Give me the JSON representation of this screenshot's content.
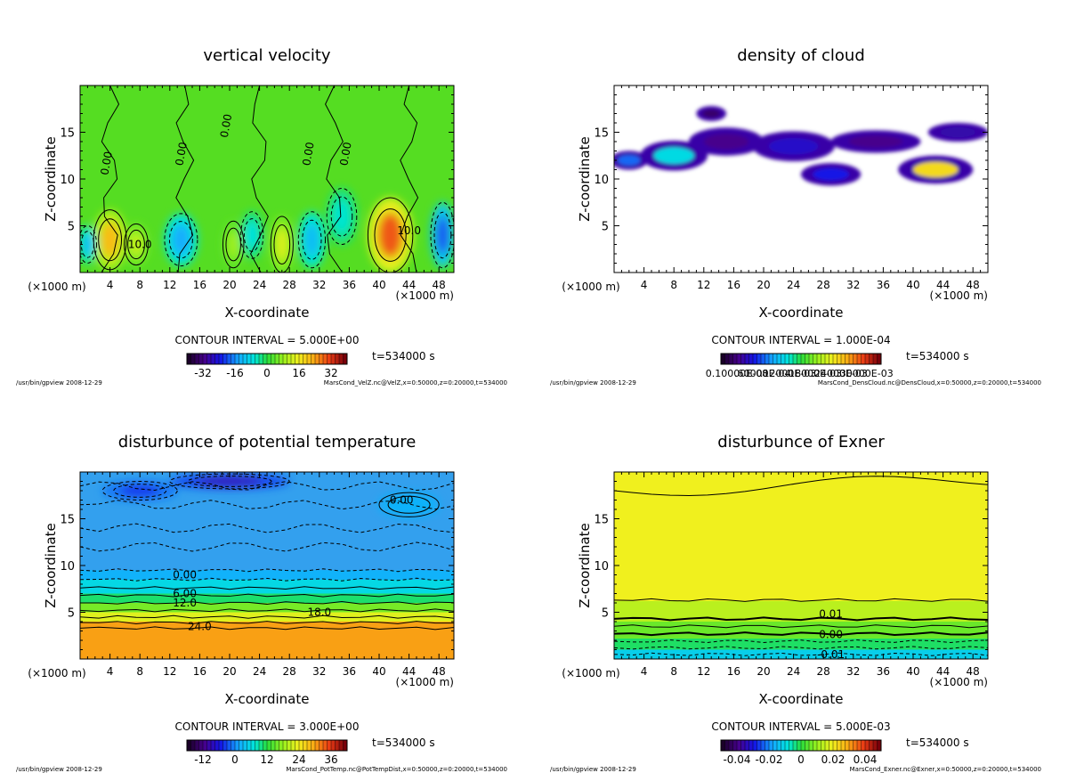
{
  "chart_data": [
    {
      "type": "heatmap",
      "title": "vertical velocity",
      "xlabel": "X-coordinate",
      "ylabel": "Z-coordinate",
      "x_unit_left": "(×1000 m)",
      "x_unit_right": "(×1000 m)",
      "xticks": [
        "4",
        "8",
        "12",
        "16",
        "20",
        "24",
        "28",
        "32",
        "36",
        "40",
        "44",
        "48"
      ],
      "yticks": [
        "5",
        "10",
        "15"
      ],
      "xlim": [
        0,
        50
      ],
      "ylim": [
        0,
        20
      ],
      "contour_interval": "CONTOUR INTERVAL = 5.000E+00",
      "colorbar_ticks": [
        "-32",
        "-16",
        "0",
        "16",
        "32"
      ],
      "colorbar_range": [
        -40,
        40
      ],
      "colormap": "rainbow",
      "time_label": "t=534000 s",
      "footer_left": "/usr/bin/gpview 2008-12-29",
      "footer_right": "MarsCond_VelZ.nc@VelZ,x=0:50000,z=0:20000,t=534000",
      "contour_labels": [
        "0.00",
        "0.00",
        "0.00",
        "0.00",
        "0.00",
        "10.0",
        "10.0"
      ],
      "background_color": "#55dd22",
      "features": [
        {
          "x": 4,
          "z": 3.5,
          "value": 22,
          "rx": 2.2,
          "rz": 3.2
        },
        {
          "x": 7.5,
          "z": 3,
          "value": 12,
          "rx": 1.6,
          "rz": 2.2
        },
        {
          "x": 13.5,
          "z": 3.5,
          "value": -14,
          "rx": 2.2,
          "rz": 2.8
        },
        {
          "x": 20.5,
          "z": 3,
          "value": 9,
          "rx": 1.4,
          "rz": 2.5
        },
        {
          "x": 23,
          "z": 4,
          "value": -7,
          "rx": 1.5,
          "rz": 2.5
        },
        {
          "x": 27,
          "z": 3,
          "value": 14,
          "rx": 1.5,
          "rz": 3
        },
        {
          "x": 31,
          "z": 3.5,
          "value": -12,
          "rx": 1.8,
          "rz": 3
        },
        {
          "x": 35,
          "z": 6,
          "value": -6,
          "rx": 2,
          "rz": 3
        },
        {
          "x": 41.5,
          "z": 4,
          "value": 30,
          "rx": 3,
          "rz": 4
        },
        {
          "x": 48.5,
          "z": 4,
          "value": -20,
          "rx": 1.6,
          "rz": 3.5
        },
        {
          "x": 1,
          "z": 3,
          "value": -12,
          "rx": 1.2,
          "rz": 2
        }
      ]
    },
    {
      "type": "heatmap",
      "title": "density of cloud",
      "xlabel": "X-coordinate",
      "ylabel": "Z-coordinate",
      "x_unit_left": "(×1000 m)",
      "x_unit_right": "(×1000 m)",
      "xticks": [
        "4",
        "8",
        "12",
        "16",
        "20",
        "24",
        "28",
        "32",
        "36",
        "40",
        "44",
        "48"
      ],
      "yticks": [
        "5",
        "10",
        "15"
      ],
      "xlim": [
        0,
        50
      ],
      "ylim": [
        0,
        20
      ],
      "contour_interval": "CONTOUR INTERVAL = 1.000E-04",
      "colorbar_ticks": [
        "0.10000E-08",
        ".60000E-04",
        ".12000E-03",
        ".18000E-03",
        ".24000E-03",
        ".30000E-03"
      ],
      "colorbar_range": [
        0,
        0.0003
      ],
      "colormap": "rainbow",
      "time_label": "t=534000 s",
      "footer_left": "/usr/bin/gpview 2008-12-29",
      "footer_right": "MarsCond_DensCloud.nc@DensCloud,x=0:50000,z=0:20000,t=534000",
      "contour_labels": [],
      "background_color": "#ffffff",
      "features": [
        {
          "x": 2,
          "z": 12,
          "value": 8e-05,
          "rx": 2.5,
          "rz": 1
        },
        {
          "x": 8,
          "z": 12.5,
          "value": 0.00012,
          "rx": 4.5,
          "rz": 1.6
        },
        {
          "x": 15,
          "z": 14,
          "value": 3e-05,
          "rx": 5,
          "rz": 1.5
        },
        {
          "x": 24,
          "z": 13.5,
          "value": 5e-05,
          "rx": 5.5,
          "rz": 1.6
        },
        {
          "x": 35,
          "z": 14,
          "value": 3e-05,
          "rx": 6,
          "rz": 1.2
        },
        {
          "x": 46,
          "z": 15,
          "value": 4e-05,
          "rx": 4,
          "rz": 1
        },
        {
          "x": 29,
          "z": 10.5,
          "value": 6e-05,
          "rx": 4,
          "rz": 1.2
        },
        {
          "x": 43,
          "z": 11,
          "value": 0.00022,
          "rx": 5,
          "rz": 1.5
        },
        {
          "x": 13,
          "z": 17,
          "value": 2e-05,
          "rx": 2,
          "rz": 0.8
        }
      ]
    },
    {
      "type": "heatmap",
      "title": "disturbunce of potential temperature",
      "xlabel": "X-coordinate",
      "ylabel": "Z-coordinate",
      "x_unit_left": "(×1000 m)",
      "x_unit_right": "(×1000 m)",
      "xticks": [
        "4",
        "8",
        "12",
        "16",
        "20",
        "24",
        "28",
        "32",
        "36",
        "40",
        "44",
        "48"
      ],
      "yticks": [
        "5",
        "10",
        "15"
      ],
      "xlim": [
        0,
        50
      ],
      "ylim": [
        0,
        20
      ],
      "contour_interval": "CONTOUR INTERVAL = 3.000E+00",
      "colorbar_ticks": [
        "-12",
        "0",
        "12",
        "24",
        "36"
      ],
      "colorbar_range": [
        -21,
        42
      ],
      "colormap": "rainbow",
      "time_label": "t=534000 s",
      "footer_left": "/usr/bin/gpview 2008-12-29",
      "footer_right": "MarsCond_PotTemp.nc@PotTempDist,x=0:50000,z=0:20000,t=534000",
      "contour_labels": [
        "0.00",
        "0.00",
        "6.00",
        "12.0",
        "18.0",
        "24.0"
      ],
      "background_color": "#33a0ee",
      "features": [
        {
          "x": 44,
          "z": 16.5,
          "value": 0,
          "rx": 4,
          "rz": 1.3
        },
        {
          "x": 20,
          "z": 19,
          "value": -12,
          "rx": 8,
          "rz": 0.8
        },
        {
          "x": 8,
          "z": 18,
          "value": -7,
          "rx": 5,
          "rz": 1
        }
      ]
    },
    {
      "type": "heatmap",
      "title": "disturbunce of Exner",
      "xlabel": "X-coordinate",
      "ylabel": "Z-coordinate",
      "x_unit_left": "(×1000 m)",
      "x_unit_right": "(×1000 m)",
      "xticks": [
        "4",
        "8",
        "12",
        "16",
        "20",
        "24",
        "28",
        "32",
        "36",
        "40",
        "44",
        "48"
      ],
      "yticks": [
        "5",
        "10",
        "15"
      ],
      "xlim": [
        0,
        50
      ],
      "ylim": [
        0,
        20
      ],
      "contour_interval": "CONTOUR INTERVAL = 5.000E-03",
      "colorbar_ticks": [
        "-0.04",
        "-0.02",
        "0",
        "0.02",
        "0.04"
      ],
      "colorbar_range": [
        -0.05,
        0.05
      ],
      "colormap": "rainbow",
      "time_label": "t=534000 s",
      "footer_left": "/usr/bin/gpview 2008-12-29",
      "footer_right": "MarsCond_Exner.nc@Exner,x=0:50000,z=0:20000,t=534000",
      "contour_labels": [
        "0.01",
        "0.00",
        "-0.01"
      ],
      "background_color": "#ccff22",
      "features": []
    }
  ]
}
